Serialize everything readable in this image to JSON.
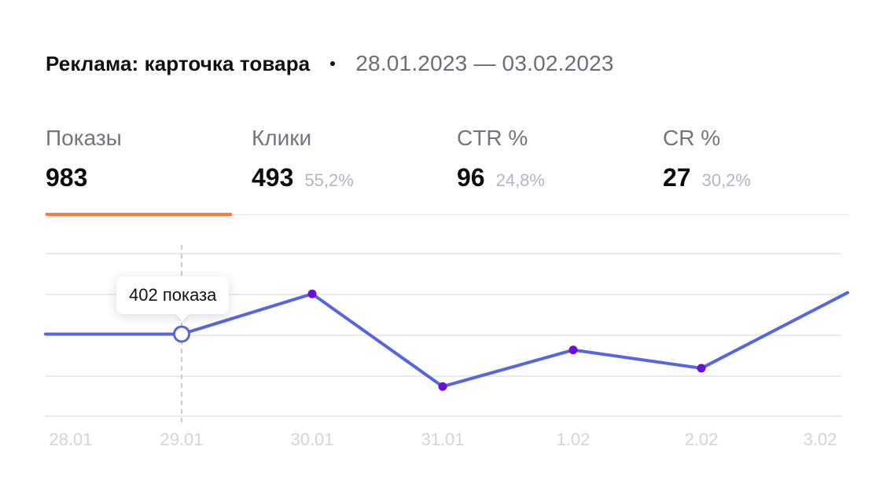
{
  "header": {
    "title": "Реклама: карточка товара",
    "period": "28.01.2023 — 03.02.2023"
  },
  "tabs": [
    {
      "label": "Показы",
      "value": "983",
      "pct": "",
      "active": true
    },
    {
      "label": "Клики",
      "value": "493",
      "pct": "55,2%",
      "active": false
    },
    {
      "label": "CTR %",
      "value": "96",
      "pct": "24,8%",
      "active": false
    },
    {
      "label": "CR %",
      "value": "27",
      "pct": "30,2%",
      "active": false
    }
  ],
  "tooltip": {
    "text": "402 показа",
    "category": "29.01"
  },
  "colors": {
    "line": "#5566e0",
    "point": "#6a10d8",
    "active_tab_underline": "#ff7a3a",
    "grid": "#e3e3e8",
    "tick_label": "#d3d3da"
  },
  "chart_data": {
    "type": "line",
    "categories": [
      "28.01",
      "29.01",
      "30.01",
      "31.01",
      "1.02",
      "2.02",
      "3.02"
    ],
    "series": [
      {
        "values": [
          402,
          402,
          501,
          273,
          363,
          318,
          504
        ]
      }
    ],
    "ylim": [
      200,
      600
    ],
    "grid": true,
    "highlight_index": 1
  }
}
